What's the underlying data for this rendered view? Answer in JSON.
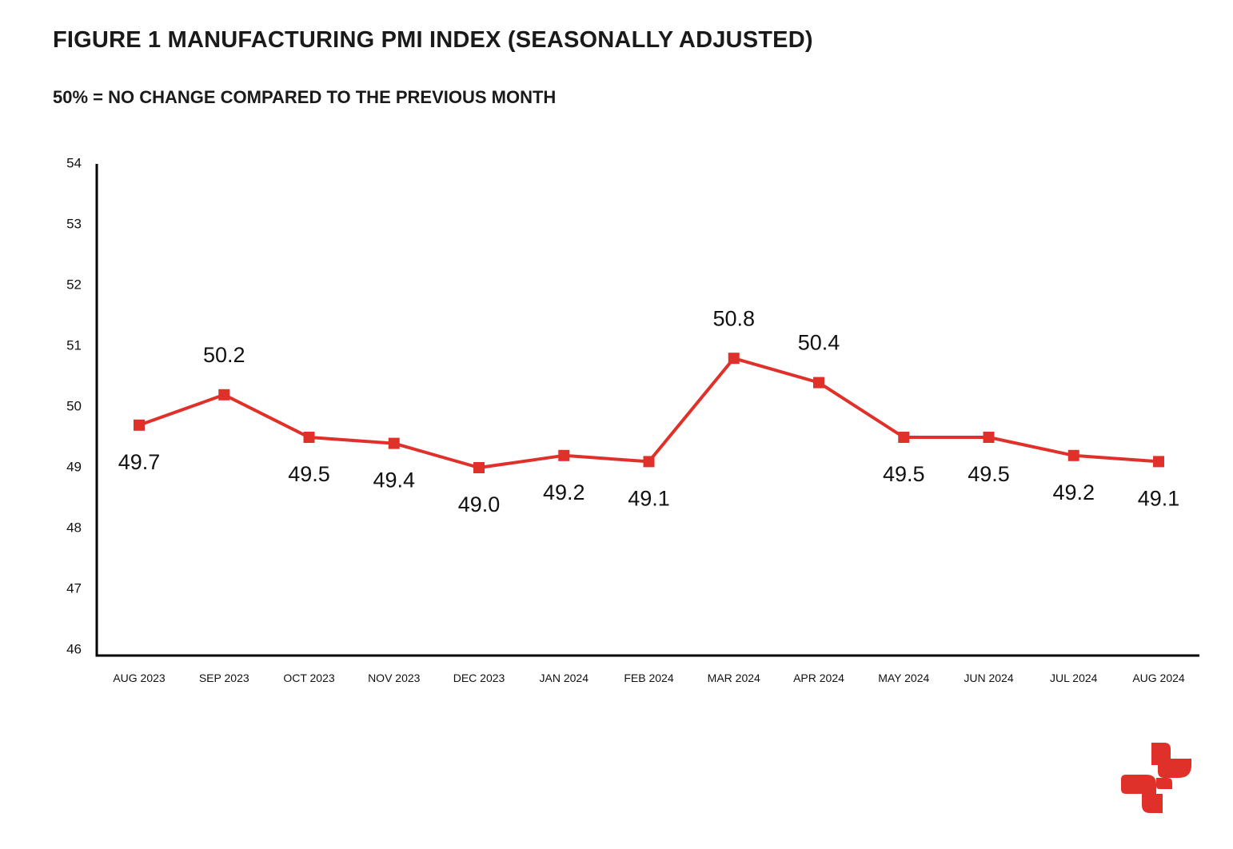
{
  "page": {
    "title": "FIGURE 1 MANUFACTURING PMI INDEX (SEASONALLY ADJUSTED)",
    "subtitle": "50% = NO CHANGE COMPARED TO THE PREVIOUS MONTH"
  },
  "colors": {
    "series": "#e0302a",
    "axis": "#000000",
    "text": "#111111",
    "logo": "#e0302a"
  },
  "logo": {
    "icon": "brand-logo-icon"
  },
  "chart_data": {
    "type": "line",
    "title": "FIGURE 1 MANUFACTURING PMI INDEX (SEASONALLY ADJUSTED)",
    "subtitle": "50% = NO CHANGE COMPARED TO THE PREVIOUS MONTH",
    "xlabel": "",
    "ylabel": "",
    "ylim": [
      46,
      54
    ],
    "yticks": [
      46,
      47,
      48,
      49,
      50,
      51,
      52,
      53,
      54
    ],
    "grid": false,
    "legend": "none",
    "categories": [
      "AUG 2023",
      "SEP 2023",
      "OCT 2023",
      "NOV 2023",
      "DEC 2023",
      "JAN 2024",
      "FEB 2024",
      "MAR 2024",
      "APR 2024",
      "MAY 2024",
      "JUN 2024",
      "JUL 2024",
      "AUG 2024"
    ],
    "series": [
      {
        "values": [
          49.7,
          50.2,
          49.5,
          49.4,
          49.0,
          49.2,
          49.1,
          50.8,
          50.4,
          49.5,
          49.5,
          49.2,
          49.1
        ],
        "labels": [
          "49.7",
          "50.2",
          "49.5",
          "49.4",
          "49.0",
          "49.2",
          "49.1",
          "50.8",
          "50.4",
          "49.5",
          "49.5",
          "49.2",
          "49.1"
        ],
        "label_positions": [
          "below",
          "above",
          "below",
          "below",
          "below",
          "below",
          "below",
          "above",
          "above",
          "below",
          "below",
          "below",
          "below"
        ],
        "marker": "square"
      }
    ]
  }
}
